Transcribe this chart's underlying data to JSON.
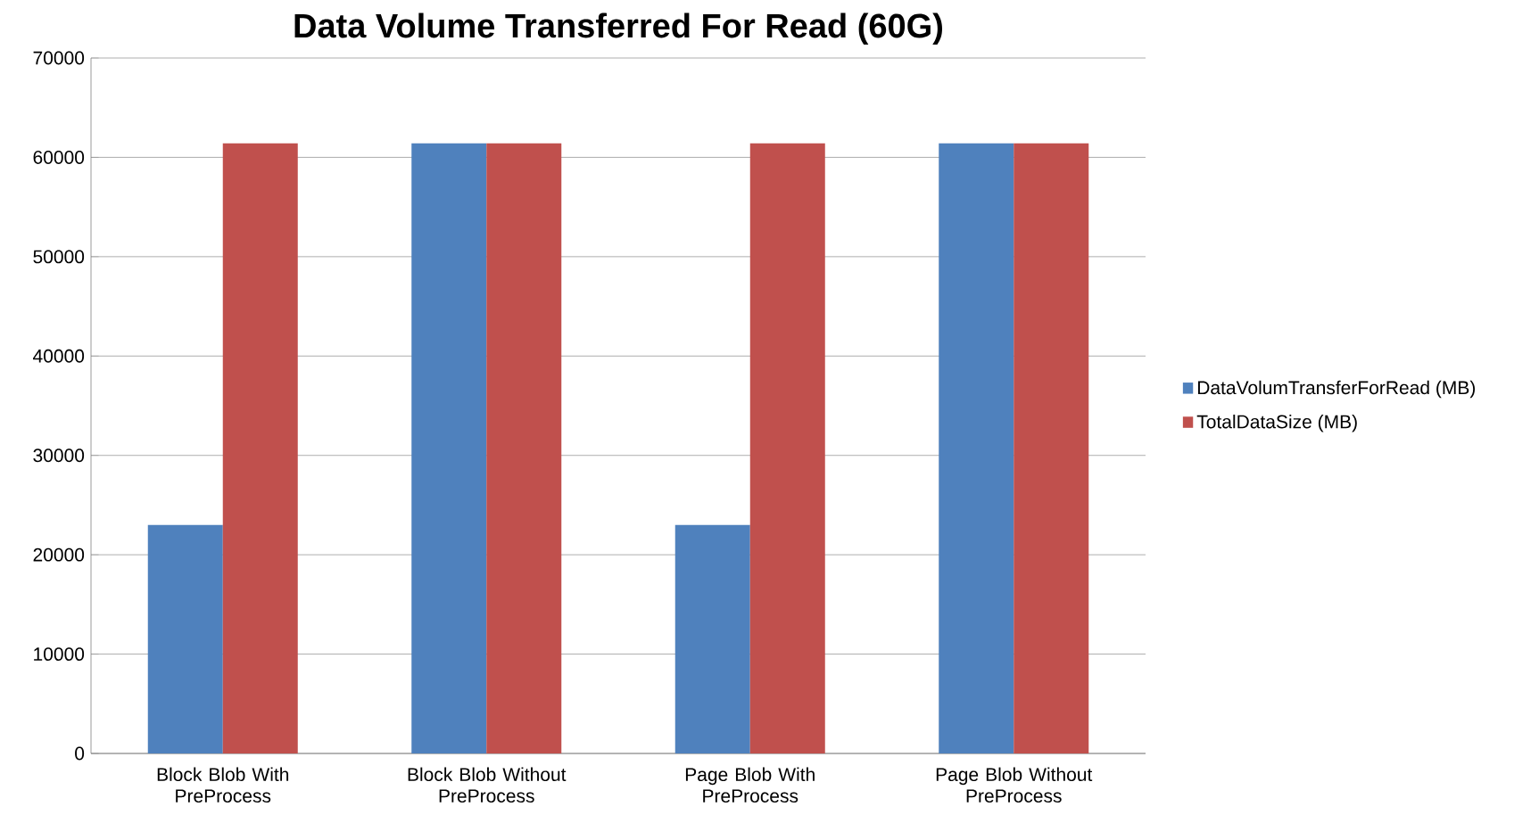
{
  "chart_data": {
    "type": "bar",
    "title": "Data Volume Transferred For Read (60G)",
    "categories": [
      "Block Blob With PreProcess",
      "Block Blob Without PreProcess",
      "Page Blob With PreProcess",
      "Page Blob Without PreProcess"
    ],
    "series": [
      {
        "name": "DataVolumTransferForRead (MB)",
        "color": "#4f81bd",
        "values": [
          23000,
          61400,
          23000,
          61400
        ]
      },
      {
        "name": "TotalDataSize (MB)",
        "color": "#c0504d",
        "values": [
          61400,
          61400,
          61400,
          61400
        ]
      }
    ],
    "ylim": [
      0,
      70000
    ],
    "yticks": [
      0,
      10000,
      20000,
      30000,
      40000,
      50000,
      60000,
      70000
    ],
    "grid": "y",
    "legend": "right"
  }
}
